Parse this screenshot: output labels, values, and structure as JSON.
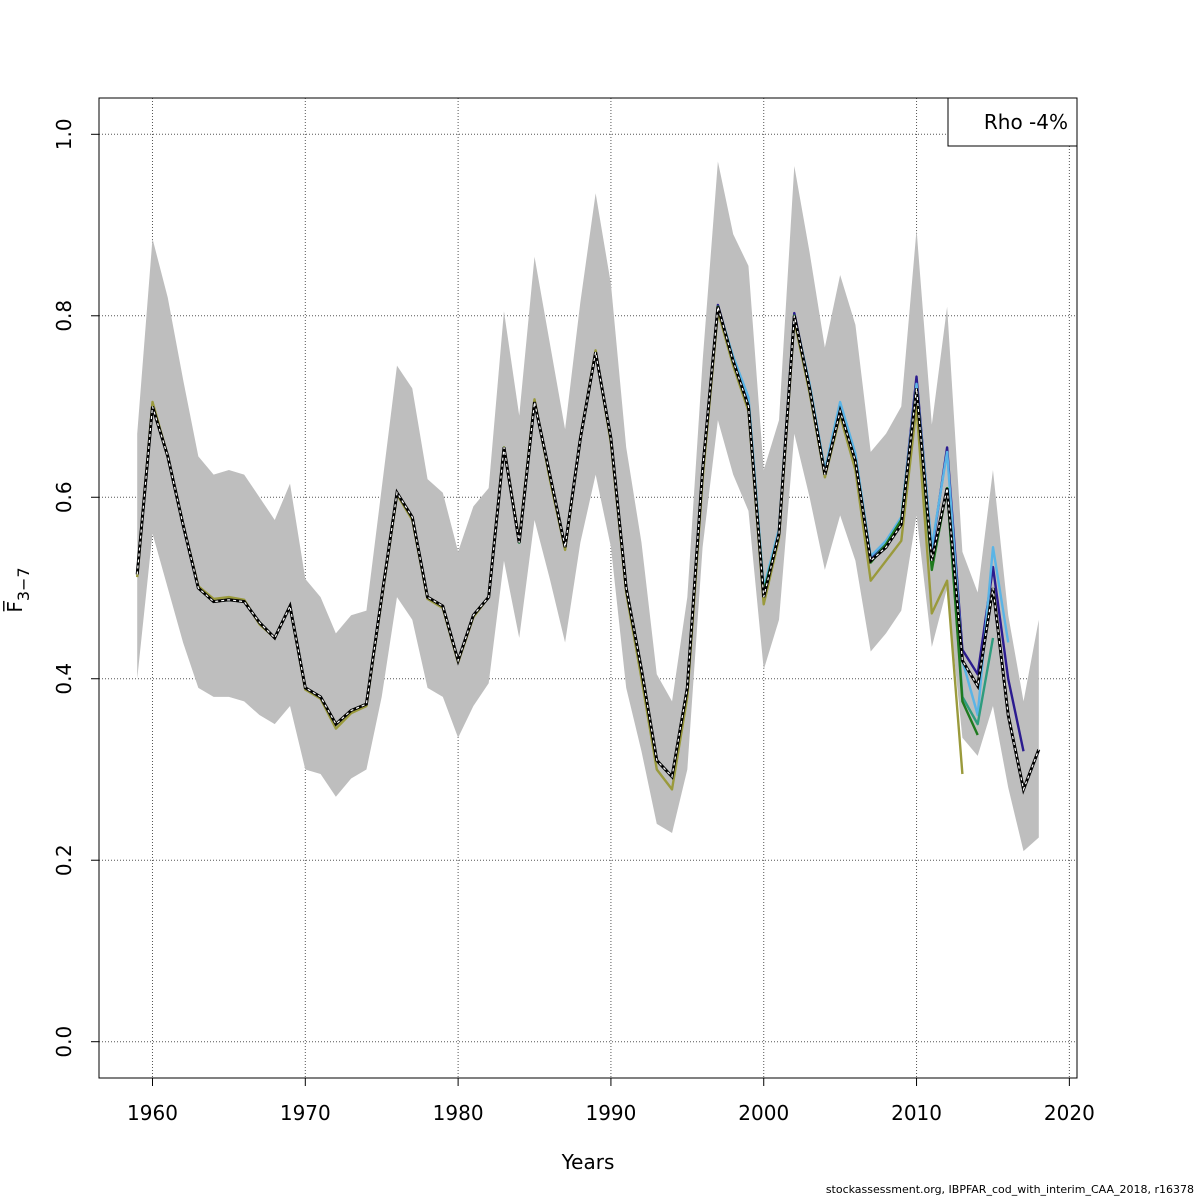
{
  "footer": "stockassessment.org, IBPFAR_cod_with_interim_CAA_2018, r16378",
  "chart_data": {
    "type": "line",
    "xlabel": "Years",
    "ylabel": "F̅",
    "ylabel_sub": "3−7",
    "xlim": [
      1956.5,
      2020.5
    ],
    "ylim": [
      -0.04,
      1.04
    ],
    "xticks": [
      1960,
      1970,
      1980,
      1990,
      2000,
      2010,
      2020
    ],
    "yticks": [
      0.0,
      0.2,
      0.4,
      0.6,
      0.8,
      1.0
    ],
    "grid": true,
    "legend": {
      "position": "top-right",
      "text": "Rho -4%"
    },
    "band_color": "#bebebe",
    "confidence_band": {
      "x": [
        1959,
        1960,
        1961,
        1962,
        1963,
        1964,
        1965,
        1966,
        1967,
        1968,
        1969,
        1970,
        1971,
        1972,
        1973,
        1974,
        1975,
        1976,
        1977,
        1978,
        1979,
        1980,
        1981,
        1982,
        1983,
        1984,
        1985,
        1986,
        1987,
        1988,
        1989,
        1990,
        1991,
        1992,
        1993,
        1994,
        1995,
        1996,
        1997,
        1998,
        1999,
        2000,
        2001,
        2002,
        2003,
        2004,
        2005,
        2006,
        2007,
        2008,
        2009,
        2010,
        2011,
        2012,
        2013,
        2014,
        2015,
        2016,
        2017,
        2018
      ],
      "lower": [
        0.4,
        0.56,
        0.5,
        0.44,
        0.39,
        0.38,
        0.38,
        0.375,
        0.36,
        0.35,
        0.37,
        0.3,
        0.295,
        0.27,
        0.29,
        0.3,
        0.38,
        0.49,
        0.465,
        0.39,
        0.38,
        0.335,
        0.37,
        0.395,
        0.53,
        0.445,
        0.575,
        0.51,
        0.44,
        0.55,
        0.625,
        0.545,
        0.39,
        0.32,
        0.24,
        0.23,
        0.3,
        0.545,
        0.685,
        0.625,
        0.585,
        0.41,
        0.465,
        0.67,
        0.6,
        0.52,
        0.58,
        0.53,
        0.43,
        0.45,
        0.475,
        0.58,
        0.435,
        0.5,
        0.335,
        0.315,
        0.37,
        0.28,
        0.21,
        0.225
      ],
      "upper": [
        0.67,
        0.885,
        0.82,
        0.73,
        0.645,
        0.625,
        0.63,
        0.625,
        0.6,
        0.575,
        0.615,
        0.51,
        0.49,
        0.45,
        0.47,
        0.475,
        0.61,
        0.745,
        0.72,
        0.62,
        0.605,
        0.54,
        0.59,
        0.61,
        0.805,
        0.69,
        0.865,
        0.77,
        0.675,
        0.815,
        0.935,
        0.835,
        0.655,
        0.55,
        0.405,
        0.375,
        0.49,
        0.75,
        0.97,
        0.89,
        0.855,
        0.63,
        0.685,
        0.965,
        0.87,
        0.765,
        0.845,
        0.79,
        0.65,
        0.67,
        0.7,
        0.895,
        0.68,
        0.81,
        0.54,
        0.495,
        0.63,
        0.47,
        0.375,
        0.465
      ]
    },
    "series": [
      {
        "color": "#000000",
        "dashed": true,
        "x": [
          1959,
          1960,
          1961,
          1962,
          1963,
          1964,
          1965,
          1966,
          1967,
          1968,
          1969,
          1970,
          1971,
          1972,
          1973,
          1974,
          1975,
          1976,
          1977,
          1978,
          1979,
          1980,
          1981,
          1982,
          1983,
          1984,
          1985,
          1986,
          1987,
          1988,
          1989,
          1990,
          1991,
          1992,
          1993,
          1994,
          1995,
          1996,
          1997,
          1998,
          1999,
          2000,
          2001,
          2002,
          2003,
          2004,
          2005,
          2006,
          2007,
          2008,
          2009,
          2010,
          2011,
          2012,
          2013,
          2014,
          2015,
          2016,
          2017,
          2018
        ],
        "y": [
          0.515,
          0.7,
          0.645,
          0.57,
          0.5,
          0.485,
          0.487,
          0.485,
          0.462,
          0.445,
          0.48,
          0.39,
          0.38,
          0.35,
          0.365,
          0.372,
          0.49,
          0.605,
          0.578,
          0.49,
          0.48,
          0.42,
          0.47,
          0.49,
          0.655,
          0.55,
          0.705,
          0.625,
          0.545,
          0.665,
          0.76,
          0.665,
          0.5,
          0.41,
          0.31,
          0.292,
          0.39,
          0.63,
          0.81,
          0.75,
          0.7,
          0.49,
          0.56,
          0.8,
          0.72,
          0.625,
          0.695,
          0.64,
          0.53,
          0.545,
          0.57,
          0.72,
          0.53,
          0.61,
          0.42,
          0.392,
          0.5,
          0.36,
          0.278,
          0.322
        ]
      },
      {
        "color": "#2b1b8f",
        "x": [
          1959,
          1960,
          1961,
          1962,
          1963,
          1964,
          1965,
          1966,
          1967,
          1968,
          1969,
          1970,
          1971,
          1972,
          1973,
          1974,
          1975,
          1976,
          1977,
          1978,
          1979,
          1980,
          1981,
          1982,
          1983,
          1984,
          1985,
          1986,
          1987,
          1988,
          1989,
          1990,
          1991,
          1992,
          1993,
          1994,
          1995,
          1996,
          1997,
          1998,
          1999,
          2000,
          2001,
          2002,
          2003,
          2004,
          2005,
          2006,
          2007,
          2008,
          2009,
          2010,
          2011,
          2012,
          2013,
          2014,
          2015,
          2016,
          2017
        ],
        "y": [
          0.515,
          0.7,
          0.645,
          0.57,
          0.5,
          0.485,
          0.487,
          0.485,
          0.462,
          0.445,
          0.48,
          0.39,
          0.38,
          0.35,
          0.365,
          0.372,
          0.49,
          0.605,
          0.578,
          0.49,
          0.48,
          0.42,
          0.47,
          0.49,
          0.655,
          0.55,
          0.705,
          0.625,
          0.545,
          0.665,
          0.76,
          0.665,
          0.5,
          0.41,
          0.31,
          0.292,
          0.39,
          0.63,
          0.812,
          0.752,
          0.705,
          0.495,
          0.562,
          0.803,
          0.722,
          0.628,
          0.698,
          0.642,
          0.532,
          0.548,
          0.575,
          0.733,
          0.54,
          0.655,
          0.432,
          0.405,
          0.523,
          0.4,
          0.32
        ]
      },
      {
        "color": "#5ab4e6",
        "x": [
          1959,
          1960,
          1961,
          1962,
          1963,
          1964,
          1965,
          1966,
          1967,
          1968,
          1969,
          1970,
          1971,
          1972,
          1973,
          1974,
          1975,
          1976,
          1977,
          1978,
          1979,
          1980,
          1981,
          1982,
          1983,
          1984,
          1985,
          1986,
          1987,
          1988,
          1989,
          1990,
          1991,
          1992,
          1993,
          1994,
          1995,
          1996,
          1997,
          1998,
          1999,
          2000,
          2001,
          2002,
          2003,
          2004,
          2005,
          2006,
          2007,
          2008,
          2009,
          2010,
          2011,
          2012,
          2013,
          2014,
          2015,
          2016
        ],
        "y": [
          0.515,
          0.7,
          0.645,
          0.57,
          0.5,
          0.485,
          0.487,
          0.485,
          0.462,
          0.445,
          0.48,
          0.39,
          0.38,
          0.35,
          0.365,
          0.372,
          0.49,
          0.605,
          0.578,
          0.49,
          0.48,
          0.42,
          0.47,
          0.49,
          0.655,
          0.55,
          0.705,
          0.625,
          0.545,
          0.665,
          0.76,
          0.665,
          0.5,
          0.41,
          0.31,
          0.292,
          0.39,
          0.63,
          0.81,
          0.755,
          0.71,
          0.5,
          0.565,
          0.8,
          0.725,
          0.63,
          0.705,
          0.648,
          0.535,
          0.552,
          0.578,
          0.725,
          0.545,
          0.65,
          0.42,
          0.36,
          0.545,
          0.44
        ]
      },
      {
        "color": "#2e9c7e",
        "x": [
          1959,
          1960,
          1961,
          1962,
          1963,
          1964,
          1965,
          1966,
          1967,
          1968,
          1969,
          1970,
          1971,
          1972,
          1973,
          1974,
          1975,
          1976,
          1977,
          1978,
          1979,
          1980,
          1981,
          1982,
          1983,
          1984,
          1985,
          1986,
          1987,
          1988,
          1989,
          1990,
          1991,
          1992,
          1993,
          1994,
          1995,
          1996,
          1997,
          1998,
          1999,
          2000,
          2001,
          2002,
          2003,
          2004,
          2005,
          2006,
          2007,
          2008,
          2009,
          2010,
          2011,
          2012,
          2013,
          2014,
          2015
        ],
        "y": [
          0.515,
          0.7,
          0.645,
          0.57,
          0.5,
          0.485,
          0.487,
          0.485,
          0.462,
          0.445,
          0.48,
          0.39,
          0.38,
          0.35,
          0.365,
          0.372,
          0.49,
          0.605,
          0.578,
          0.49,
          0.48,
          0.42,
          0.47,
          0.49,
          0.655,
          0.55,
          0.705,
          0.625,
          0.545,
          0.665,
          0.76,
          0.665,
          0.5,
          0.41,
          0.31,
          0.292,
          0.39,
          0.63,
          0.81,
          0.75,
          0.7,
          0.495,
          0.56,
          0.8,
          0.72,
          0.625,
          0.695,
          0.64,
          0.53,
          0.548,
          0.575,
          0.715,
          0.53,
          0.61,
          0.38,
          0.35,
          0.445
        ]
      },
      {
        "color": "#1f7a1f",
        "x": [
          1959,
          1960,
          1961,
          1962,
          1963,
          1964,
          1965,
          1966,
          1967,
          1968,
          1969,
          1970,
          1971,
          1972,
          1973,
          1974,
          1975,
          1976,
          1977,
          1978,
          1979,
          1980,
          1981,
          1982,
          1983,
          1984,
          1985,
          1986,
          1987,
          1988,
          1989,
          1990,
          1991,
          1992,
          1993,
          1994,
          1995,
          1996,
          1997,
          1998,
          1999,
          2000,
          2001,
          2002,
          2003,
          2004,
          2005,
          2006,
          2007,
          2008,
          2009,
          2010,
          2011,
          2012,
          2013,
          2014
        ],
        "y": [
          0.515,
          0.7,
          0.645,
          0.57,
          0.5,
          0.485,
          0.487,
          0.485,
          0.462,
          0.445,
          0.48,
          0.39,
          0.38,
          0.35,
          0.365,
          0.372,
          0.49,
          0.605,
          0.578,
          0.49,
          0.48,
          0.42,
          0.47,
          0.49,
          0.655,
          0.55,
          0.705,
          0.625,
          0.545,
          0.665,
          0.76,
          0.665,
          0.5,
          0.41,
          0.31,
          0.292,
          0.39,
          0.63,
          0.81,
          0.75,
          0.7,
          0.495,
          0.56,
          0.8,
          0.72,
          0.625,
          0.695,
          0.64,
          0.528,
          0.548,
          0.575,
          0.715,
          0.52,
          0.61,
          0.375,
          0.338
        ]
      },
      {
        "color": "#9a9a3c",
        "x": [
          1959,
          1960,
          1961,
          1962,
          1963,
          1964,
          1965,
          1966,
          1967,
          1968,
          1969,
          1970,
          1971,
          1972,
          1973,
          1974,
          1975,
          1976,
          1977,
          1978,
          1979,
          1980,
          1981,
          1982,
          1983,
          1984,
          1985,
          1986,
          1987,
          1988,
          1989,
          1990,
          1991,
          1992,
          1993,
          1994,
          1995,
          1996,
          1997,
          1998,
          1999,
          2000,
          2001,
          2002,
          2003,
          2004,
          2005,
          2006,
          2007,
          2008,
          2009,
          2010,
          2011,
          2012,
          2013
        ],
        "y": [
          0.512,
          0.705,
          0.645,
          0.57,
          0.502,
          0.488,
          0.49,
          0.487,
          0.46,
          0.445,
          0.48,
          0.388,
          0.378,
          0.345,
          0.362,
          0.37,
          0.488,
          0.603,
          0.575,
          0.488,
          0.478,
          0.418,
          0.468,
          0.49,
          0.655,
          0.552,
          0.708,
          0.62,
          0.542,
          0.665,
          0.762,
          0.66,
          0.495,
          0.4,
          0.3,
          0.278,
          0.38,
          0.62,
          0.805,
          0.745,
          0.695,
          0.482,
          0.555,
          0.795,
          0.715,
          0.622,
          0.69,
          0.63,
          0.508,
          0.53,
          0.552,
          0.7,
          0.472,
          0.508,
          0.295
        ]
      }
    ]
  }
}
